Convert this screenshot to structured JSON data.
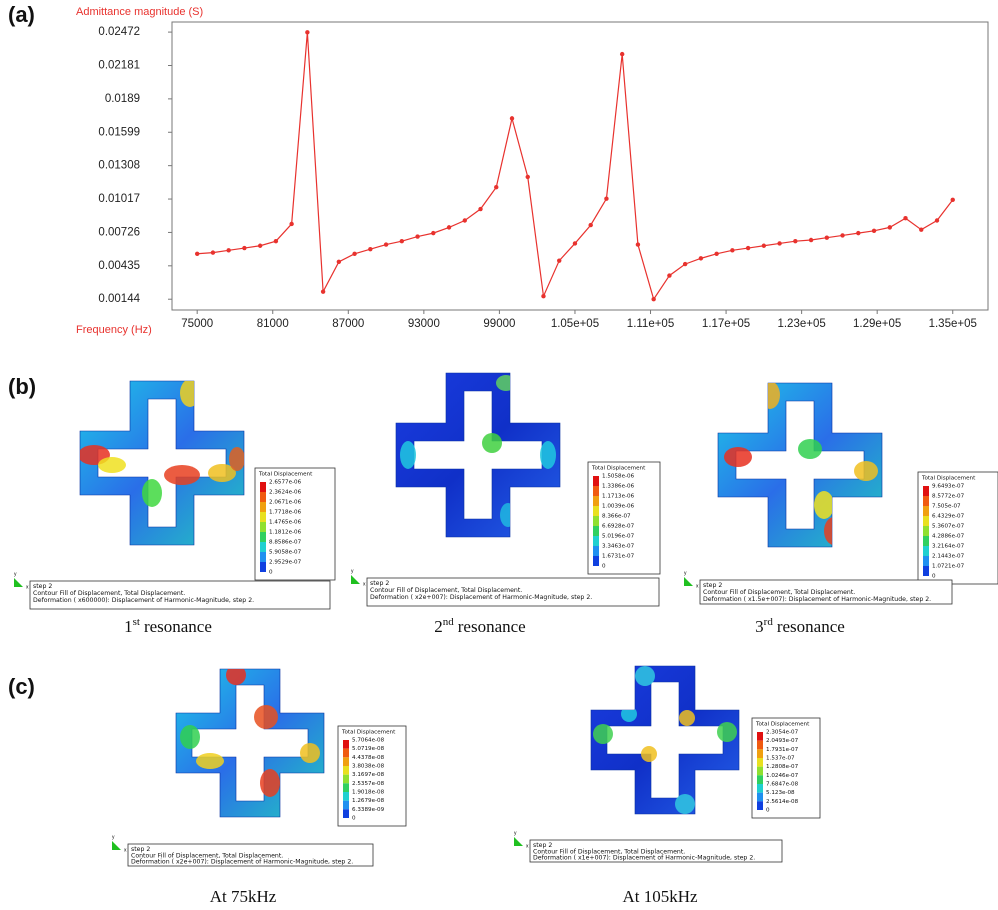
{
  "chart_data": {
    "type": "line",
    "y_label": "Admittance magnitude (S)",
    "x_label": "Frequency (Hz)",
    "color": "#e8322e",
    "x": [
      75000,
      76250,
      77500,
      78750,
      80000,
      81250,
      82500,
      83750,
      85000,
      86250,
      87500,
      88750,
      90000,
      91250,
      92500,
      93750,
      95000,
      96250,
      97500,
      98750,
      100000,
      101250,
      102500,
      103750,
      105000,
      106250,
      107500,
      108750,
      110000,
      111250,
      112500,
      113750,
      115000,
      116250,
      117500,
      118750,
      120000,
      121250,
      122500,
      123750,
      125000,
      126250,
      127500,
      128750,
      130000,
      131250,
      132500,
      133750,
      135000
    ],
    "values": [
      0.0054,
      0.0055,
      0.0057,
      0.0059,
      0.0061,
      0.0065,
      0.008,
      0.0247,
      0.0021,
      0.0047,
      0.0054,
      0.0058,
      0.0062,
      0.0065,
      0.0069,
      0.0072,
      0.0077,
      0.0083,
      0.0093,
      0.0112,
      0.0172,
      0.0121,
      0.0017,
      0.0048,
      0.0063,
      0.0079,
      0.0102,
      0.0228,
      0.0062,
      0.00144,
      0.0035,
      0.0045,
      0.005,
      0.0054,
      0.0057,
      0.0059,
      0.0061,
      0.0063,
      0.0065,
      0.0066,
      0.0068,
      0.007,
      0.0072,
      0.0074,
      0.0077,
      0.0085,
      0.0075,
      0.0083,
      0.0101
    ],
    "xlim": [
      73000,
      137800
    ],
    "ylim": [
      0.0005,
      0.0256
    ],
    "xticks": [
      75000,
      81000,
      87000,
      93000,
      99000,
      {
        "value": 105000,
        "label": "1.05e+05"
      },
      {
        "value": 111000,
        "label": "1.11e+05"
      },
      {
        "value": 117000,
        "label": "1.17e+05"
      },
      {
        "value": 123000,
        "label": "1.23e+05"
      },
      {
        "value": 129000,
        "label": "1.29e+05"
      },
      {
        "value": 135000,
        "label": "1.35e+05"
      }
    ],
    "yticks": [
      0.00144,
      0.00435,
      0.00726,
      0.01017,
      0.01308,
      0.01599,
      0.0189,
      0.02181,
      0.02472
    ],
    "grid": false
  },
  "figure": {
    "panel_labels": [
      "(a)",
      "(b)",
      "(c)"
    ],
    "triad_labels": [
      "y",
      "x"
    ],
    "panels": [
      {
        "legend_title": "Total Displacement",
        "legend_values": [
          "2.6577e-06",
          "2.3624e-06",
          "2.0671e-06",
          "1.7718e-06",
          "1.4765e-06",
          "1.1812e-06",
          "8.8586e-07",
          "5.9058e-07",
          "2.9529e-07",
          "0"
        ],
        "caption_lines": [
          "step 2",
          "Contour Fill of Displacement, Total Displacement.",
          "Deformation ( x600000): Displacement of Harmonic-Magnitude, step 2."
        ],
        "caption": {
          "number": "1",
          "sup": "st",
          "text": "resonance"
        }
      },
      {
        "legend_title": "Total Displacement",
        "legend_values": [
          "1.5058e-06",
          "1.3386e-06",
          "1.1713e-06",
          "1.0039e-06",
          "8.366e-07",
          "6.6928e-07",
          "5.0196e-07",
          "3.3463e-07",
          "1.6731e-07",
          "0"
        ],
        "caption_lines": [
          "step 2",
          "Contour Fill of Displacement, Total Displacement.",
          "Deformation ( x2e+007): Displacement of Harmonic-Magnitude, step 2."
        ],
        "caption": {
          "number": "2",
          "sup": "nd",
          "text": "resonance"
        }
      },
      {
        "legend_title": "Total Displacement",
        "legend_values": [
          "9.6493e-07",
          "8.5772e-07",
          "7.505e-07",
          "6.4329e-07",
          "5.3607e-07",
          "4.2886e-07",
          "3.2164e-07",
          "2.1443e-07",
          "1.0721e-07",
          "0"
        ],
        "caption_lines": [
          "step 2",
          "Contour Fill of Displacement, Total Displacement.",
          "Deformation ( x1.5e+007): Displacement of Harmonic-Magnitude, step 2."
        ],
        "caption": {
          "number": "3",
          "sup": "rd",
          "text": "resonance"
        }
      },
      {
        "legend_title": "Total Displacement",
        "legend_values": [
          "5.7064e-08",
          "5.0719e-08",
          "4.4378e-08",
          "3.8038e-08",
          "3.1697e-08",
          "2.5357e-08",
          "1.9018e-08",
          "1.2679e-08",
          "6.3389e-09",
          "0"
        ],
        "caption_lines": [
          "step 2",
          "Contour Fill of Displacement, Total Displacement.",
          "Deformation ( x2e+007): Displacement of Harmonic-Magnitude, step 2."
        ],
        "caption": {
          "text": "At 75kHz"
        }
      },
      {
        "legend_title": "Total Displacement",
        "legend_values": [
          "2.3054e-07",
          "2.0493e-07",
          "1.7931e-07",
          "1.537e-07",
          "1.2808e-07",
          "1.0246e-07",
          "7.6847e-08",
          "5.123e-08",
          "2.5614e-08",
          "0"
        ],
        "caption_lines": [
          "step 2",
          "Contour Fill of Displacement, Total Displacement.",
          "Deformation ( x1e+007): Displacement of Harmonic-Magnitude, step 2."
        ],
        "caption": {
          "text": "At 105kHz"
        }
      }
    ]
  }
}
